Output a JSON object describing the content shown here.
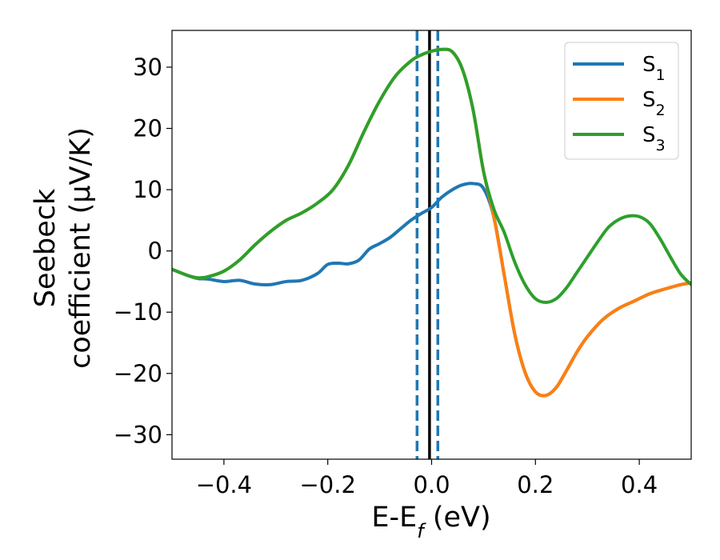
{
  "chart_data": {
    "type": "line",
    "title": "",
    "xlabel": {
      "main": "E-E",
      "sub": "f",
      "suffix": " (eV)"
    },
    "ylabel": {
      "line1": "Seebeck",
      "line2": "coefficient  (μV/K)"
    },
    "xlim": [
      -0.5,
      0.5
    ],
    "ylim": [
      -34,
      36
    ],
    "xticks": [
      -0.4,
      -0.2,
      0.0,
      0.2,
      0.4
    ],
    "xtick_labels": [
      "−0.4",
      "−0.2",
      "0.0",
      "0.2",
      "0.4"
    ],
    "yticks": [
      -30,
      -20,
      -10,
      0,
      10,
      20,
      30
    ],
    "ytick_labels": [
      "−30",
      "−20",
      "−10",
      "0",
      "10",
      "20",
      "30"
    ],
    "grid": false,
    "legend_position": "top-right",
    "vertical_lines": [
      {
        "x": -0.028,
        "style": "dashed",
        "color": "#1f77b4"
      },
      {
        "x": 0.012,
        "style": "dashed",
        "color": "#1f77b4"
      },
      {
        "x": -0.004,
        "style": "solid",
        "color": "#000000"
      }
    ],
    "series": [
      {
        "name": "S",
        "subscript": "1",
        "color": "#1f77b4",
        "x": [
          -0.5,
          -0.47,
          -0.45,
          -0.43,
          -0.4,
          -0.37,
          -0.34,
          -0.31,
          -0.28,
          -0.25,
          -0.22,
          -0.2,
          -0.18,
          -0.16,
          -0.14,
          -0.12,
          -0.1,
          -0.08,
          -0.06,
          -0.04,
          -0.02,
          0.0,
          0.02,
          0.04,
          0.06,
          0.08,
          0.1,
          0.12,
          0.14,
          0.16,
          0.18,
          0.2,
          0.22,
          0.24,
          0.26,
          0.28,
          0.3,
          0.33,
          0.36,
          0.39,
          0.42,
          0.45,
          0.48,
          0.5
        ],
        "y": [
          -3.0,
          -4.0,
          -4.5,
          -4.6,
          -5.0,
          -4.8,
          -5.4,
          -5.5,
          -5.0,
          -4.8,
          -3.7,
          -2.2,
          -2.0,
          -2.1,
          -1.5,
          0.3,
          1.2,
          2.2,
          3.6,
          5.0,
          6.1,
          7.1,
          8.8,
          10.0,
          10.8,
          11.0,
          10.2,
          5.5,
          -4.0,
          -13.5,
          -19.8,
          -23.0,
          -23.6,
          -22.3,
          -19.5,
          -16.5,
          -14.0,
          -11.2,
          -9.4,
          -8.2,
          -7.0,
          -6.2,
          -5.5,
          -5.2
        ]
      },
      {
        "name": "S",
        "subscript": "2",
        "color": "#ff7f0e",
        "x": [
          -0.5,
          -0.47,
          -0.45,
          -0.43,
          -0.4,
          -0.37,
          -0.34,
          -0.31,
          -0.28,
          -0.25,
          -0.22,
          -0.19,
          -0.16,
          -0.13,
          -0.1,
          -0.07,
          -0.04,
          -0.02,
          0.0,
          0.02,
          0.04,
          0.06,
          0.08,
          0.1,
          0.12,
          0.14,
          0.16,
          0.18,
          0.2,
          0.22,
          0.24,
          0.26,
          0.28,
          0.3,
          0.33,
          0.36,
          0.39,
          0.42,
          0.45,
          0.48,
          0.5
        ],
        "y": [
          -3.0,
          -4.0,
          -4.4,
          -4.2,
          -3.3,
          -1.5,
          1.0,
          3.2,
          5.0,
          6.2,
          7.8,
          10.0,
          14.0,
          19.5,
          24.5,
          28.5,
          31.0,
          32.0,
          32.6,
          32.9,
          32.5,
          29.5,
          23.0,
          13.0,
          5.5,
          -4.0,
          -13.5,
          -19.8,
          -23.0,
          -23.6,
          -22.3,
          -19.5,
          -16.5,
          -14.0,
          -11.2,
          -9.4,
          -8.2,
          -7.0,
          -6.2,
          -5.5,
          -5.2
        ]
      },
      {
        "name": "S",
        "subscript": "3",
        "color": "#2ca02c",
        "x": [
          -0.5,
          -0.47,
          -0.45,
          -0.43,
          -0.4,
          -0.37,
          -0.34,
          -0.31,
          -0.28,
          -0.25,
          -0.22,
          -0.19,
          -0.16,
          -0.13,
          -0.1,
          -0.07,
          -0.04,
          -0.02,
          0.0,
          0.02,
          0.04,
          0.06,
          0.08,
          0.1,
          0.12,
          0.14,
          0.16,
          0.18,
          0.2,
          0.22,
          0.24,
          0.26,
          0.28,
          0.3,
          0.32,
          0.34,
          0.36,
          0.38,
          0.4,
          0.42,
          0.44,
          0.46,
          0.48,
          0.5
        ],
        "y": [
          -3.0,
          -4.0,
          -4.4,
          -4.2,
          -3.3,
          -1.5,
          1.0,
          3.2,
          5.0,
          6.2,
          7.8,
          10.0,
          14.0,
          19.5,
          24.5,
          28.5,
          31.0,
          32.0,
          32.6,
          32.9,
          32.5,
          29.5,
          23.0,
          13.0,
          6.8,
          3.0,
          -1.8,
          -5.5,
          -7.8,
          -8.4,
          -7.8,
          -6.0,
          -3.5,
          -1.0,
          1.5,
          3.8,
          5.1,
          5.7,
          5.6,
          4.5,
          2.0,
          -1.0,
          -3.8,
          -5.5
        ]
      }
    ]
  }
}
